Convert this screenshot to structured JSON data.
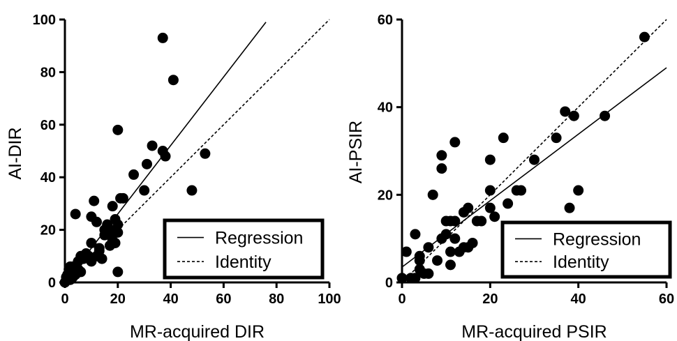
{
  "chart_data": [
    {
      "type": "scatter",
      "xlabel": "MR-acquired DIR",
      "ylabel": "AI-DIR",
      "xlim": [
        0,
        100
      ],
      "ylim": [
        0,
        100
      ],
      "xticks": [
        "0",
        "20",
        "40",
        "60",
        "80",
        "100"
      ],
      "yticks": [
        "0",
        "20",
        "40",
        "60",
        "80",
        "100"
      ],
      "legend": {
        "placement": "bottom-right",
        "entries": [
          "Regression",
          "Identity"
        ]
      },
      "regression": {
        "x_range": [
          0,
          76
        ],
        "y_range": [
          0,
          99
        ]
      },
      "identity": {
        "x_range": [
          20,
          100
        ],
        "y_range": [
          20,
          100
        ]
      },
      "points": [
        [
          0,
          0
        ],
        [
          0.5,
          2
        ],
        [
          1,
          1
        ],
        [
          1,
          3
        ],
        [
          1.5,
          5
        ],
        [
          2,
          1
        ],
        [
          2,
          4
        ],
        [
          2,
          6
        ],
        [
          3,
          2
        ],
        [
          3,
          4
        ],
        [
          3,
          6
        ],
        [
          4,
          26
        ],
        [
          4,
          3
        ],
        [
          5,
          5
        ],
        [
          5,
          8
        ],
        [
          6,
          10
        ],
        [
          6,
          4
        ],
        [
          7,
          9
        ],
        [
          8,
          11
        ],
        [
          9,
          10
        ],
        [
          10,
          8
        ],
        [
          10,
          15
        ],
        [
          10,
          25
        ],
        [
          11,
          31
        ],
        [
          12,
          23
        ],
        [
          12,
          10
        ],
        [
          13,
          12
        ],
        [
          13,
          13
        ],
        [
          14,
          9
        ],
        [
          15,
          18
        ],
        [
          15,
          20
        ],
        [
          16,
          22
        ],
        [
          17,
          19
        ],
        [
          17,
          14
        ],
        [
          18,
          29
        ],
        [
          18,
          16
        ],
        [
          19,
          20
        ],
        [
          19,
          24
        ],
        [
          19,
          15
        ],
        [
          20,
          19
        ],
        [
          20,
          4
        ],
        [
          20,
          58
        ],
        [
          20,
          22
        ],
        [
          21,
          32
        ],
        [
          22,
          32
        ],
        [
          26,
          41
        ],
        [
          30,
          35
        ],
        [
          31,
          45
        ],
        [
          33,
          52
        ],
        [
          37,
          50
        ],
        [
          37,
          93
        ],
        [
          38,
          48
        ],
        [
          41,
          77
        ],
        [
          48,
          35
        ],
        [
          53,
          49
        ]
      ]
    },
    {
      "type": "scatter",
      "xlabel": "MR-acquired PSIR",
      "ylabel": "AI-PSIR",
      "xlim": [
        0,
        60
      ],
      "ylim": [
        0,
        60
      ],
      "xticks": [
        "0",
        "20",
        "40",
        "60"
      ],
      "yticks": [
        "0",
        "20",
        "40",
        "60"
      ],
      "legend": {
        "placement": "bottom-right",
        "entries": [
          "Regression",
          "Identity"
        ]
      },
      "regression": {
        "x_range": [
          0,
          60
        ],
        "y_range": [
          3.5,
          49
        ]
      },
      "identity": {
        "x_range": [
          0,
          60
        ],
        "y_range": [
          0,
          60
        ]
      },
      "points": [
        [
          0,
          1
        ],
        [
          1,
          7
        ],
        [
          2,
          1
        ],
        [
          3,
          1
        ],
        [
          3,
          11
        ],
        [
          4,
          3
        ],
        [
          4,
          5
        ],
        [
          4,
          6
        ],
        [
          5,
          2
        ],
        [
          6,
          8
        ],
        [
          6,
          2
        ],
        [
          7,
          20
        ],
        [
          8,
          5
        ],
        [
          9,
          10
        ],
        [
          9,
          26
        ],
        [
          9,
          29
        ],
        [
          10,
          11
        ],
        [
          10,
          14
        ],
        [
          11,
          14
        ],
        [
          11,
          7
        ],
        [
          11,
          4
        ],
        [
          12,
          32
        ],
        [
          12,
          10
        ],
        [
          12,
          14
        ],
        [
          13,
          7
        ],
        [
          14,
          8
        ],
        [
          14,
          16
        ],
        [
          15,
          17
        ],
        [
          15,
          8
        ],
        [
          16,
          9
        ],
        [
          17,
          14
        ],
        [
          18,
          14
        ],
        [
          20,
          28
        ],
        [
          20,
          21
        ],
        [
          20,
          17
        ],
        [
          21,
          15
        ],
        [
          23,
          33
        ],
        [
          24,
          18
        ],
        [
          26,
          21
        ],
        [
          27,
          21
        ],
        [
          30,
          28
        ],
        [
          35,
          33
        ],
        [
          37,
          39
        ],
        [
          38,
          17
        ],
        [
          39,
          38
        ],
        [
          40,
          21
        ],
        [
          46,
          38
        ],
        [
          55,
          56
        ]
      ]
    }
  ]
}
